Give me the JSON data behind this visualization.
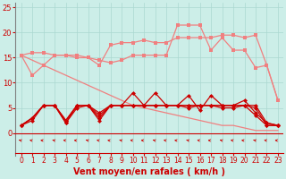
{
  "x": [
    0,
    1,
    2,
    3,
    4,
    5,
    6,
    7,
    8,
    9,
    10,
    11,
    12,
    13,
    14,
    15,
    16,
    17,
    18,
    19,
    20,
    21,
    22,
    23
  ],
  "line_light1": [
    15.5,
    11.5,
    13.5,
    15.5,
    15.5,
    15.0,
    15.0,
    13.5,
    17.5,
    18.0,
    18.0,
    18.5,
    18.0,
    18.0,
    19.0,
    19.0,
    19.0,
    19.0,
    19.5,
    19.5,
    19.0,
    19.5,
    13.5,
    6.5
  ],
  "line_light2": [
    15.5,
    16.0,
    16.0,
    15.5,
    15.5,
    15.5,
    15.0,
    14.5,
    14.0,
    14.5,
    15.5,
    15.5,
    15.5,
    15.5,
    21.5,
    21.5,
    21.5,
    16.5,
    19.0,
    16.5,
    16.5,
    13.0,
    13.5,
    6.5
  ],
  "line_slope": [
    15.5,
    14.5,
    13.5,
    12.5,
    11.5,
    10.5,
    9.5,
    8.5,
    7.5,
    6.5,
    5.5,
    5.0,
    4.5,
    4.0,
    3.5,
    3.0,
    2.5,
    2.0,
    1.5,
    1.5,
    1.0,
    0.5,
    0.5,
    0.5
  ],
  "line_dark1": [
    1.5,
    3.0,
    5.5,
    5.5,
    2.5,
    5.5,
    5.5,
    4.0,
    5.5,
    5.5,
    8.0,
    5.5,
    8.0,
    5.5,
    5.5,
    7.5,
    4.5,
    7.5,
    5.5,
    5.5,
    6.5,
    4.0,
    2.0,
    1.5
  ],
  "line_dark2": [
    1.5,
    3.0,
    5.5,
    5.5,
    2.5,
    5.5,
    5.5,
    3.5,
    5.5,
    5.5,
    5.5,
    5.5,
    5.5,
    5.5,
    5.5,
    5.5,
    5.5,
    5.5,
    5.5,
    5.5,
    5.5,
    5.5,
    2.0,
    1.5
  ],
  "line_dark3": [
    1.5,
    2.5,
    5.5,
    5.5,
    2.0,
    5.5,
    5.5,
    2.5,
    5.5,
    5.5,
    5.5,
    5.5,
    5.5,
    5.5,
    5.5,
    5.5,
    5.5,
    5.5,
    5.5,
    5.5,
    5.5,
    3.5,
    1.5,
    1.5
  ],
  "line_dark4": [
    1.5,
    3.0,
    5.5,
    5.5,
    2.0,
    5.0,
    5.5,
    3.0,
    5.5,
    5.5,
    5.5,
    5.5,
    5.5,
    5.5,
    5.5,
    5.0,
    5.5,
    5.5,
    5.0,
    5.0,
    5.5,
    5.0,
    1.5,
    1.5
  ],
  "color_light": "#f08080",
  "color_dark": "#cc0000",
  "bg_color": "#cceee8",
  "grid_color": "#aad8d0",
  "xlabel": "Vent moyen/en rafales ( km/h )",
  "ylim": [
    -4.5,
    26
  ],
  "xlim": [
    -0.5,
    23.5
  ],
  "yticks": [
    0,
    5,
    10,
    15,
    20,
    25
  ],
  "xticks": [
    0,
    1,
    2,
    3,
    4,
    5,
    6,
    7,
    8,
    9,
    10,
    11,
    12,
    13,
    14,
    15,
    16,
    17,
    18,
    19,
    20,
    21,
    22,
    23
  ],
  "xlabel_fontsize": 7,
  "tick_fontsize": 5.5,
  "ytick_fontsize": 6
}
